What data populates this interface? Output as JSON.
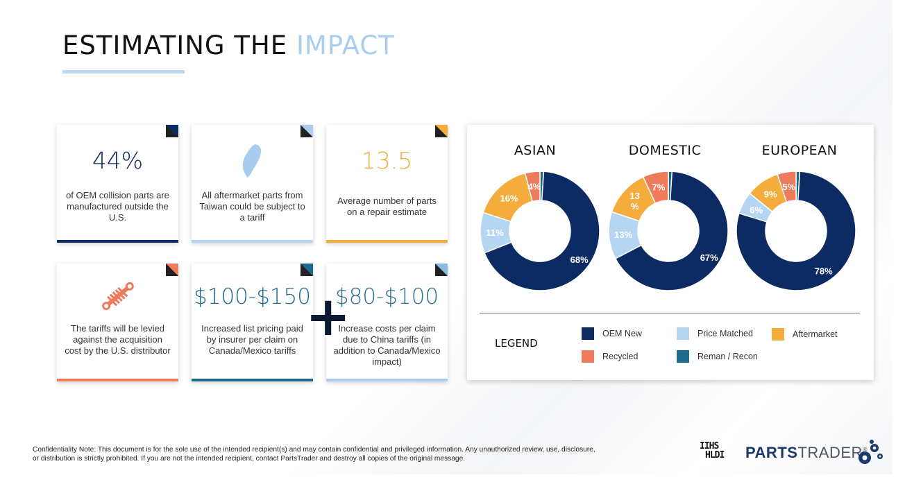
{
  "header": {
    "title_main": "ESTIMATING THE ",
    "title_accent": "IMPACT"
  },
  "cards": [
    {
      "value": "44%",
      "text": "of OEM collision parts are manufactured outside the U.S.",
      "color": "#0d2b63"
    },
    {
      "icon": "taiwan-map-icon",
      "text": "All aftermarket parts from Taiwan could be subject to a tariff",
      "color": "#a9cdee"
    },
    {
      "value": "13.5",
      "text": "Average number of parts on a repair estimate",
      "color": "#f4ad3d"
    },
    {
      "icon": "shock-absorber-icon",
      "text": "The tariffs will be levied against the acquisition cost by the U.S. distributor",
      "color": "#ee7b5b"
    },
    {
      "value": "$100-$150",
      "text": "Increased list pricing paid by insurer per claim on Canada/Mexico tariffs",
      "color": "#1d6a8c"
    },
    {
      "value": "$80-$100",
      "text": "Increase costs per claim due to China tariffs (in addition to Canada/Mexico impact)",
      "color": "#86bde0"
    }
  ],
  "plus_sign": "+",
  "colors": {
    "oem_new": "#0d2b63",
    "price_matched": "#b5d6f3",
    "aftermarket": "#f4ad3d",
    "recycled": "#ee7b5b",
    "reman": "#1d6a8c"
  },
  "chart_data": {
    "type": "pie",
    "charts": [
      {
        "title": "ASIAN",
        "labels": [
          "OEM New",
          "Price Matched",
          "Aftermarket",
          "Recycled",
          "Reman / Recon"
        ],
        "values": [
          68,
          11,
          16,
          4,
          1
        ],
        "data_labels": [
          "68%",
          "11%",
          "16%",
          "4%",
          ""
        ]
      },
      {
        "title": "DOMESTIC",
        "labels": [
          "OEM New",
          "Price Matched",
          "Aftermarket",
          "Recycled",
          "Reman / Recon"
        ],
        "values": [
          67,
          13,
          13,
          7,
          1
        ],
        "data_labels": [
          "67%",
          "13%",
          "13\n%",
          "7%",
          ""
        ]
      },
      {
        "title": "EUROPEAN",
        "labels": [
          "OEM New",
          "Price Matched",
          "Aftermarket",
          "Recycled",
          "Reman / Recon"
        ],
        "values": [
          78,
          6,
          9,
          5,
          1
        ],
        "data_labels": [
          "78%",
          "6%",
          "9%",
          "5%",
          ""
        ]
      }
    ],
    "donut": true
  },
  "legend": {
    "title": "LEGEND",
    "items": [
      {
        "label": "OEM New",
        "color": "#0d2b63"
      },
      {
        "label": "Price Matched",
        "color": "#b5d6f3"
      },
      {
        "label": "Aftermarket",
        "color": "#f4ad3d"
      },
      {
        "label": "Recycled",
        "color": "#ee7b5b"
      },
      {
        "label": "Reman / Recon",
        "color": "#1d6a8c"
      }
    ]
  },
  "footer": {
    "note": "Confidentiality Note: This document is for the sole use of the intended recipient(s) and may contain confidential and privileged information. Any unauthorized review, use, disclosure, or distribution is strictly prohibited. If you are not the intended recipient, contact PartsTrader and destroy all copies of the original message.",
    "logo_iihs_line1": "IIHS",
    "logo_iihs_line2": "HLDI",
    "logo_parts": "PARTS",
    "logo_trader": "TRADER",
    "logo_reg": "®"
  }
}
